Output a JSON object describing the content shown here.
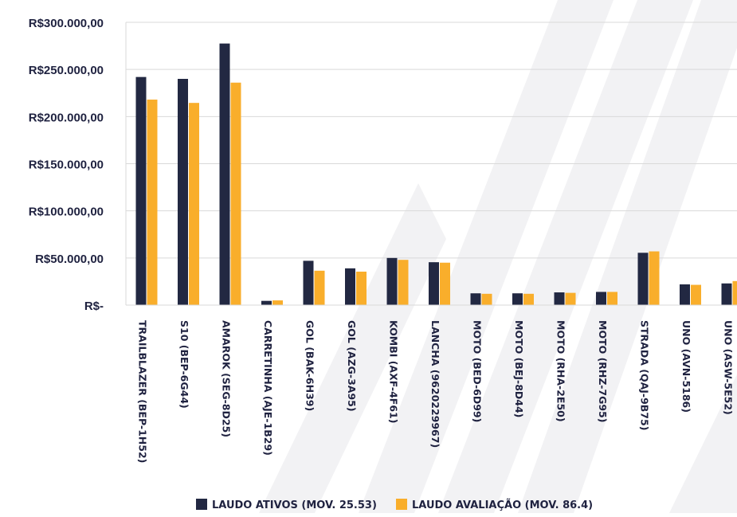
{
  "colors": {
    "series_1": "#222842",
    "series_2": "#f9ae2b",
    "gridline": "#d9d9d9",
    "axis": "#d9d9d9",
    "watermark": "#f2f2f4",
    "text": "#1f2240"
  },
  "chart_data": {
    "type": "bar",
    "title": "",
    "xlabel": "",
    "ylabel": "",
    "ylim": [
      0,
      300000
    ],
    "yticks": [
      {
        "value": 0,
        "label": "R$-"
      },
      {
        "value": 50000,
        "label": "R$50.000,00"
      },
      {
        "value": 100000,
        "label": "R$100.000,00"
      },
      {
        "value": 150000,
        "label": "R$150.000,00"
      },
      {
        "value": 200000,
        "label": "R$200.000,00"
      },
      {
        "value": 250000,
        "label": "R$250.000,00"
      },
      {
        "value": 300000,
        "label": "R$300.000,00"
      }
    ],
    "grid": true,
    "legend_position": "bottom",
    "categories": [
      "TRAILBLAZER (BEP-1H52)",
      "S10 (BEP-6G44)",
      "AMAROK (SEG-8D25)",
      "CARRETINHA (AJE-1B29)",
      "GOL (BAK-6H39)",
      "GOL (AZG-3A95)",
      "KOMBI (AXF-4F61)",
      "LANCHA (9620229967)",
      "MOTO (BED-6D99)",
      "MOTO (BEJ-8D44)",
      "MOTO (RHA-2E50)",
      "MOTO (RHZ-7G95)",
      "STRADA (QAJ-9B75)",
      "UNO (AVN-5186)",
      "UNO (ASW-5E52)"
    ],
    "series": [
      {
        "name": "LAUDO ATIVOS (MOV. 25.53)",
        "values": [
          242000,
          240000,
          277500,
          4500,
          47000,
          39000,
          50000,
          45500,
          12500,
          12500,
          13500,
          14000,
          55500,
          22000,
          23000
        ]
      },
      {
        "name": "LAUDO AVALIAÇÃO (MOV. 86.4)",
        "values": [
          218000,
          214500,
          236000,
          5000,
          36500,
          35500,
          48000,
          45000,
          12000,
          12000,
          13000,
          14000,
          57000,
          21500,
          25500
        ]
      }
    ]
  }
}
